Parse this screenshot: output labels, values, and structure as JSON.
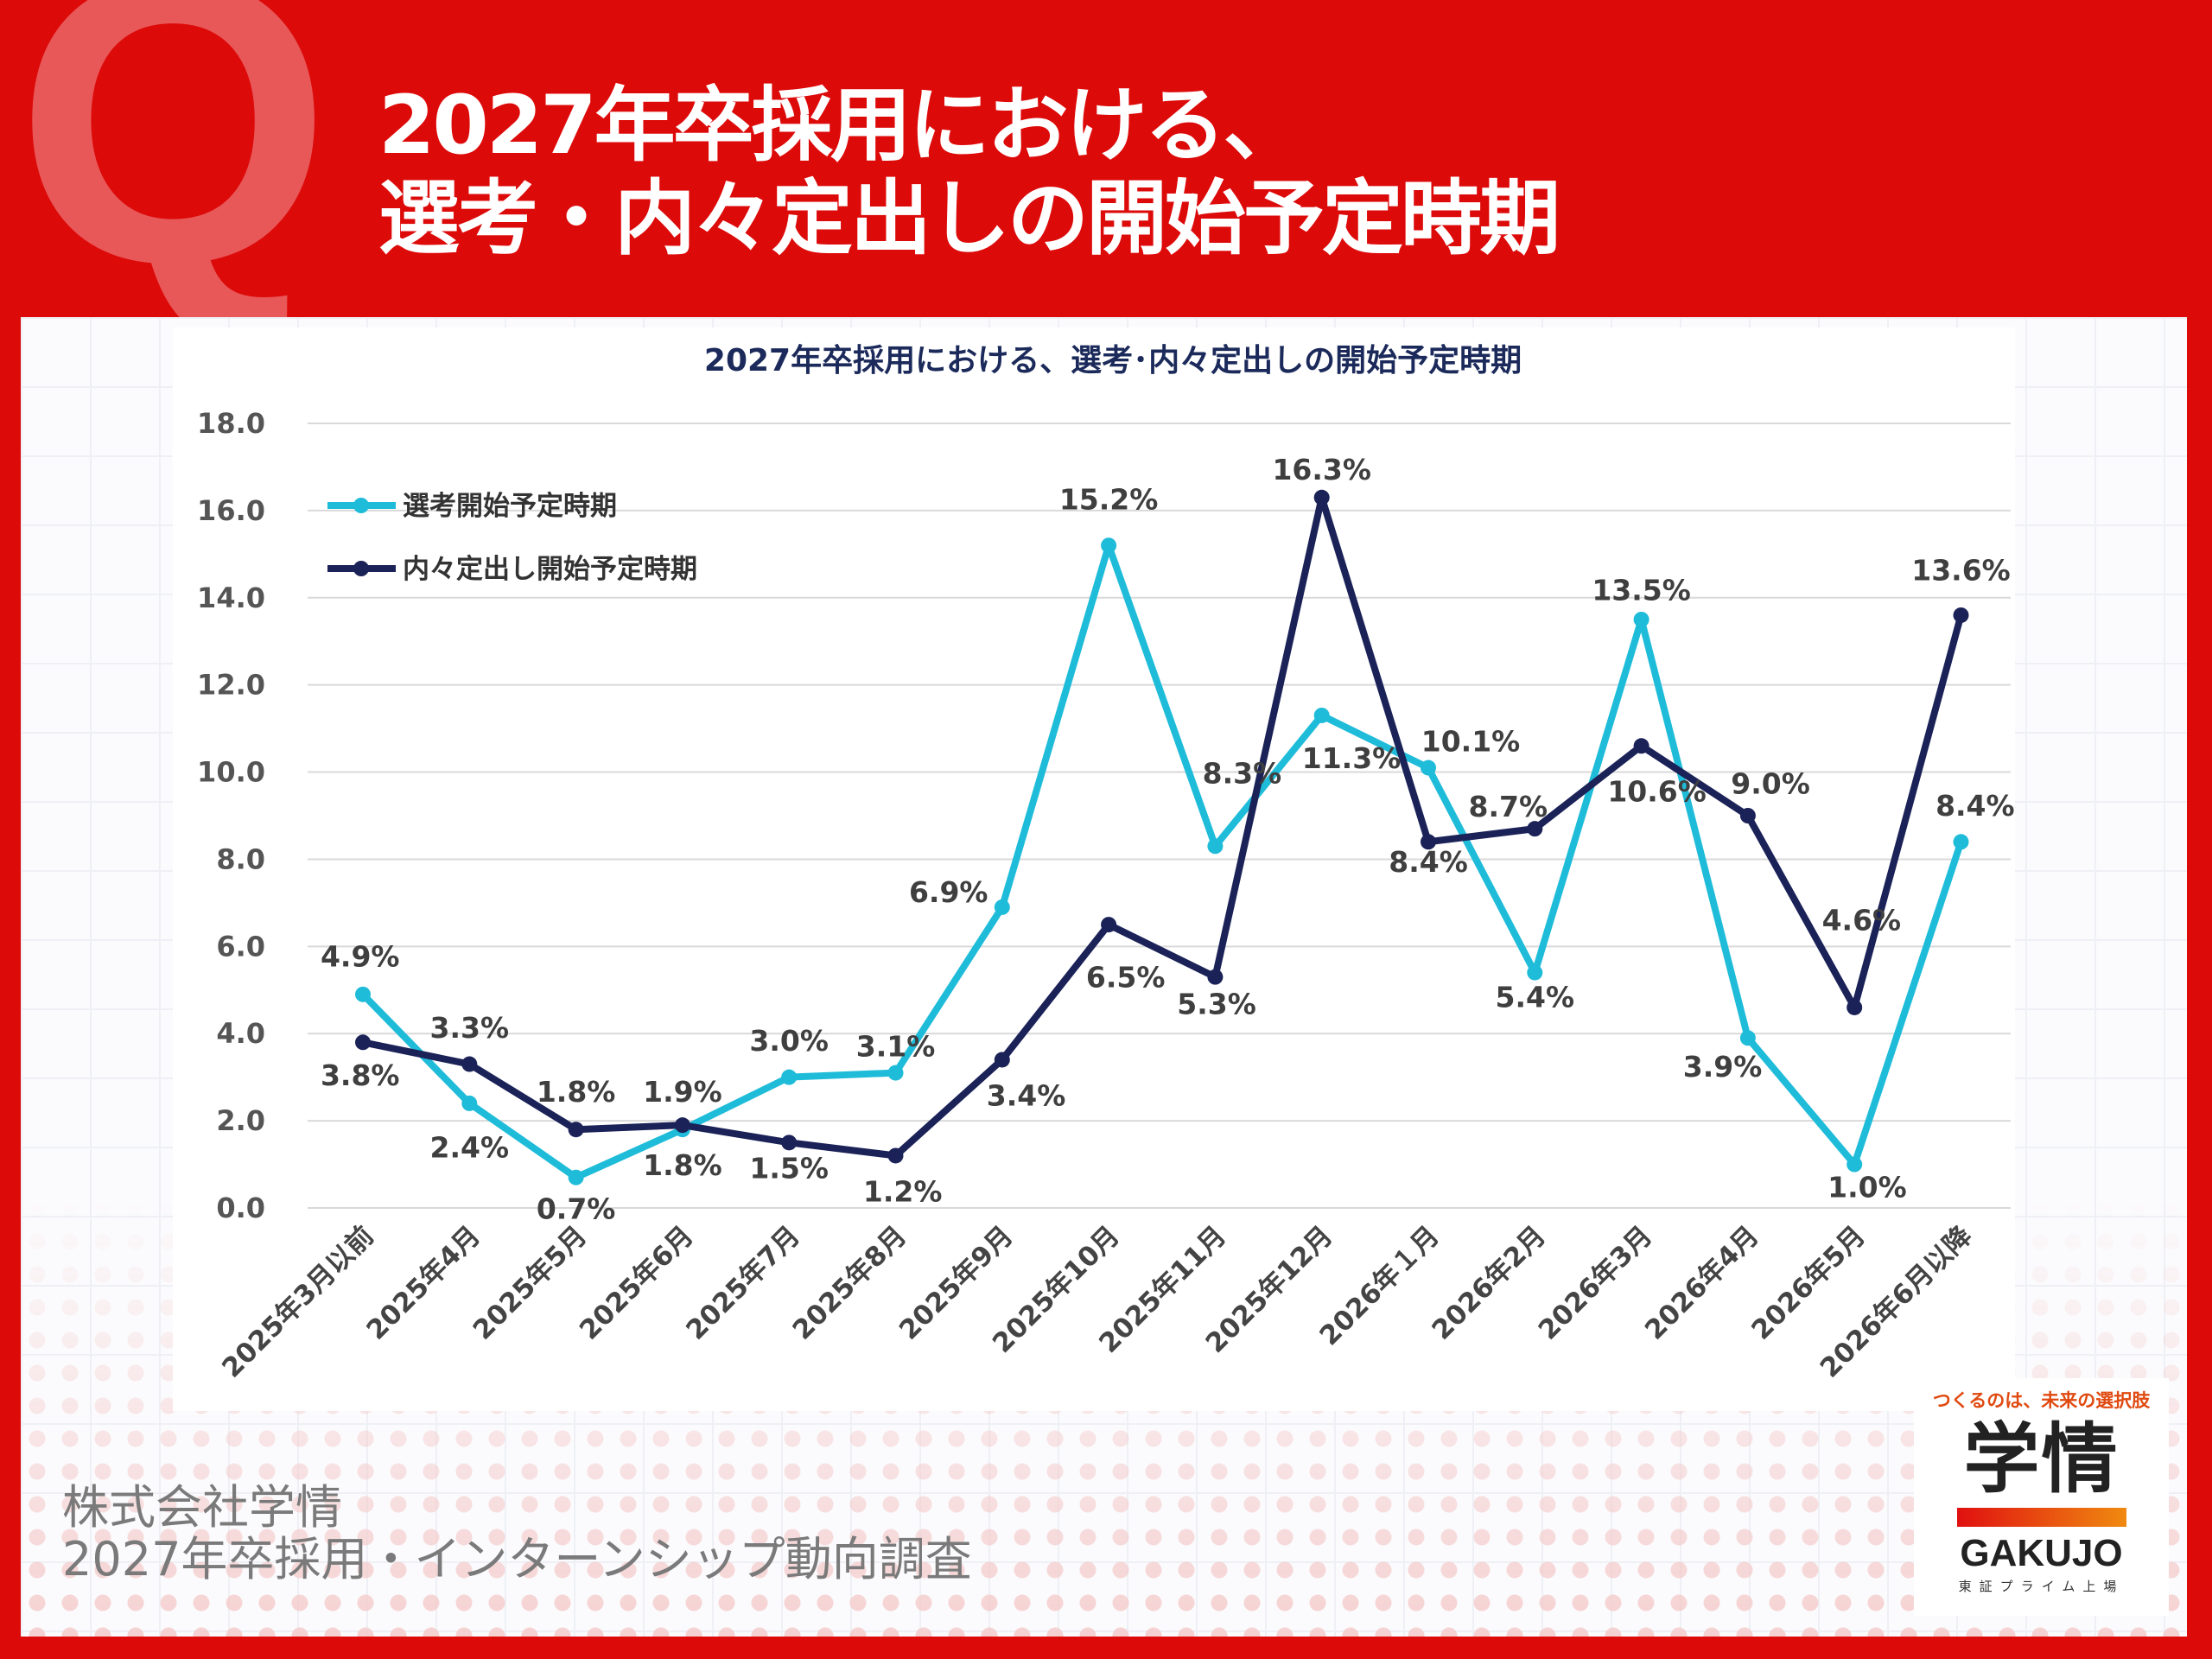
{
  "header": {
    "q_mark": "Q",
    "title_line1": "2027年卒採用における、",
    "title_line2": "選考・内々定出しの開始予定時期"
  },
  "footer": {
    "company": "株式会社学情",
    "survey": "2027年卒採用・インターンシップ動向調査"
  },
  "logo": {
    "tagline": "つくるのは、未来の選択肢",
    "name_ja": "学情",
    "name_en": "GAKUJO",
    "listing": "東証プライム上場"
  },
  "colors": {
    "background": "#DD0A0A",
    "series1": "#1FBCD9",
    "series2": "#1B2257"
  },
  "chart_data": {
    "type": "line",
    "title": "2027年卒採用における、選考･内々定出しの開始予定時期",
    "xlabel": "",
    "ylabel": "",
    "ylim": [
      0,
      18
    ],
    "yticks": [
      "0.0",
      "2.0",
      "4.0",
      "6.0",
      "8.0",
      "10.0",
      "12.0",
      "14.0",
      "16.0",
      "18.0"
    ],
    "grid": true,
    "legend_position": "top-left",
    "categories": [
      "2025年3月以前",
      "2025年4月",
      "2025年5月",
      "2025年6月",
      "2025年7月",
      "2025年8月",
      "2025年9月",
      "2025年10月",
      "2025年11月",
      "2025年12月",
      "2026年１月",
      "2026年2月",
      "2026年3月",
      "2026年4月",
      "2026年5月",
      "2026年6月以降"
    ],
    "series": [
      {
        "name": "選考開始予定時期",
        "values": [
          4.9,
          2.4,
          0.7,
          1.8,
          3.0,
          3.1,
          6.9,
          15.2,
          8.3,
          11.3,
          10.1,
          5.4,
          13.5,
          3.9,
          1.0,
          8.4
        ],
        "labels": [
          "4.9%",
          "2.4%",
          "0.7%",
          "1.8%",
          "3.0%",
          "3.1%",
          "6.9%",
          "15.2%",
          "8.3%",
          "11.3%",
          "10.1%",
          "5.4%",
          "13.5%",
          "3.9%",
          "1.0%",
          "8.4%"
        ]
      },
      {
        "name": "内々定出し開始予定時期",
        "values": [
          3.8,
          3.3,
          1.8,
          1.9,
          1.5,
          1.2,
          3.4,
          6.5,
          5.3,
          16.3,
          8.4,
          8.7,
          10.6,
          9.0,
          4.6,
          13.6
        ],
        "labels": [
          "3.8%",
          "3.3%",
          "1.8%",
          "1.9%",
          "1.5%",
          "1.2%",
          "3.4%",
          "6.5%",
          "5.3%",
          "16.3%",
          "8.4%",
          "8.7%",
          "10.6%",
          "9.0%",
          "4.6%",
          "13.6%"
        ]
      }
    ]
  }
}
